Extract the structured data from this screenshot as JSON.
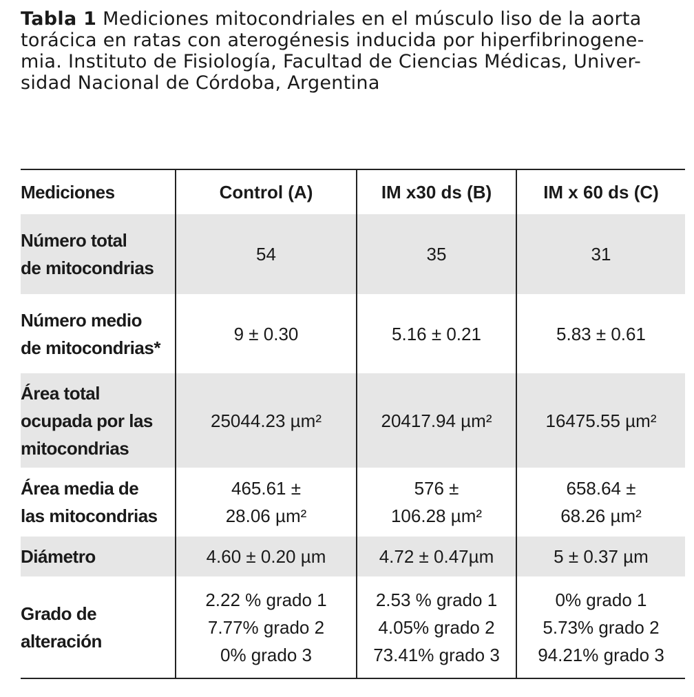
{
  "caption": {
    "label": "Tabla 1",
    "lines": [
      "Mediciones mitocondriales en el músculo liso de la aorta",
      "torácica en ratas con aterogénesis inducida por hiperfibrinogene-",
      "mia. Instituto de Fisiología, Facultad de Ciencias Médicas, Univer-",
      "sidad Nacional de Córdoba, Argentina"
    ]
  },
  "table": {
    "header": [
      "Mediciones",
      "Control (A)",
      "IM x30 ds (B)",
      "IM x 60 ds (C)"
    ],
    "rows": [
      [
        [
          "Número total",
          "de mitocondrias"
        ],
        [
          "54"
        ],
        [
          "35"
        ],
        [
          "31"
        ]
      ],
      [
        [
          "Número medio",
          "de mitocondrias*"
        ],
        [
          "9 ± 0.30"
        ],
        [
          "5.16 ± 0.21"
        ],
        [
          "5.83 ± 0.61"
        ]
      ],
      [
        [
          "Área total",
          "ocupada por las",
          "mitocondrias"
        ],
        [
          "25044.23 µm²"
        ],
        [
          "20417.94 µm²"
        ],
        [
          "16475.55 µm²"
        ]
      ],
      [
        [
          "Área media de",
          "las mitocondrias"
        ],
        [
          "465.61 ±",
          "28.06 µm²"
        ],
        [
          "576 ±",
          "106.28 µm²"
        ],
        [
          "658.64 ±",
          "68.26 µm²"
        ]
      ],
      [
        [
          "Diámetro"
        ],
        [
          "4.60 ± 0.20 µm"
        ],
        [
          "4.72 ± 0.47µm"
        ],
        [
          "5 ± 0.37 µm"
        ]
      ],
      [
        [
          "Grado de",
          "alteración"
        ],
        [
          "2.22 % grado 1",
          "7.77% grado 2",
          "0% grado 3"
        ],
        [
          "2.53 % grado 1",
          "4.05% grado 2",
          "73.41% grado 3"
        ],
        [
          "0% grado 1",
          "5.73% grado 2",
          "94.21% grado 3"
        ]
      ]
    ]
  }
}
